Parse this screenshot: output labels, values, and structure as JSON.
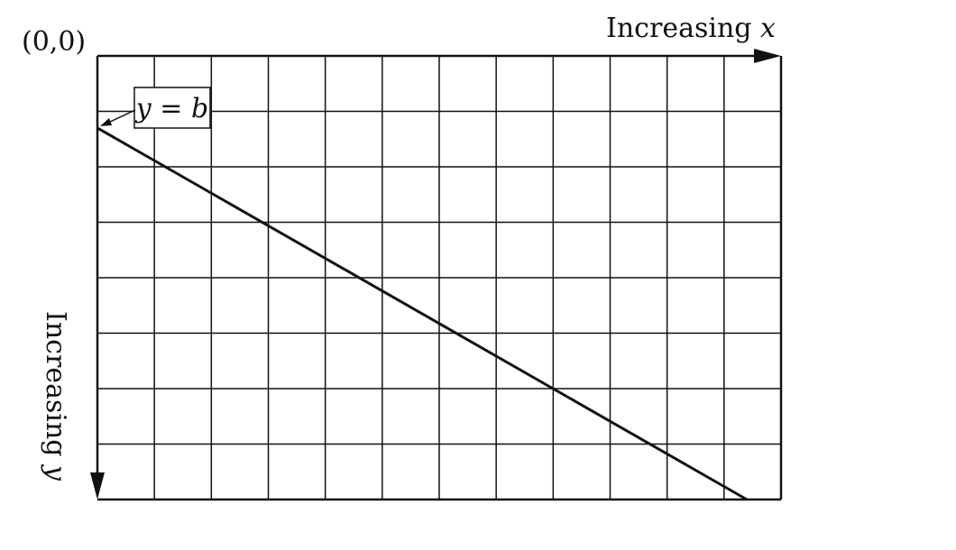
{
  "origin_label": "(0,0)",
  "x_axis_label": {
    "prefix": "Increasing ",
    "variable": "x"
  },
  "y_axis_label": {
    "prefix": "Increasing ",
    "variable": "y"
  },
  "intercept_label": {
    "variable": "y",
    "operator": " = ",
    "constant": "b"
  },
  "grid": {
    "columns": 12,
    "rows": 8
  },
  "line": {
    "y_intercept_rows": 1.3,
    "end_column": 11.4,
    "end_row": 8
  },
  "colors": {
    "ink": "#111111",
    "background": "#ffffff"
  }
}
